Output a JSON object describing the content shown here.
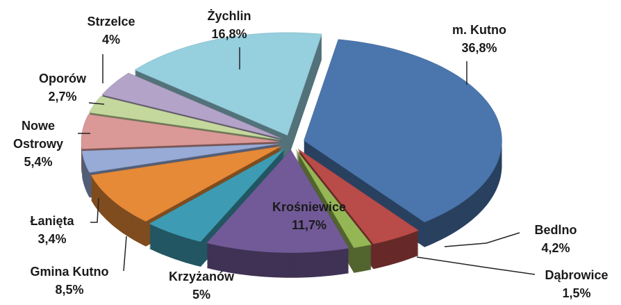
{
  "chart_data": {
    "type": "pie",
    "categories": [
      "m. Kutno",
      "Bedlno",
      "Dąbrowice",
      "Krośniewice",
      "Krzyżanów",
      "Gmina Kutno",
      "Łanięta",
      "Nowe Ostrowy",
      "Oporów",
      "Strzelce",
      "Żychlin"
    ],
    "values": [
      36.8,
      4.2,
      1.5,
      11.7,
      5,
      8.5,
      3.4,
      5.4,
      2.7,
      4,
      16.8
    ],
    "value_labels": [
      "36,8%",
      "4,2%",
      "1,5%",
      "11,7%",
      "5%",
      "8,5%",
      "3,4%",
      "5,4%",
      "2,7%",
      "4%",
      "16,8%"
    ],
    "colors": [
      "#4a76ad",
      "#b94b48",
      "#95b655",
      "#725a98",
      "#3d9cb3",
      "#e68a38",
      "#97abd6",
      "#da9896",
      "#c4d89d",
      "#b4a3c8",
      "#96cfde"
    ]
  }
}
